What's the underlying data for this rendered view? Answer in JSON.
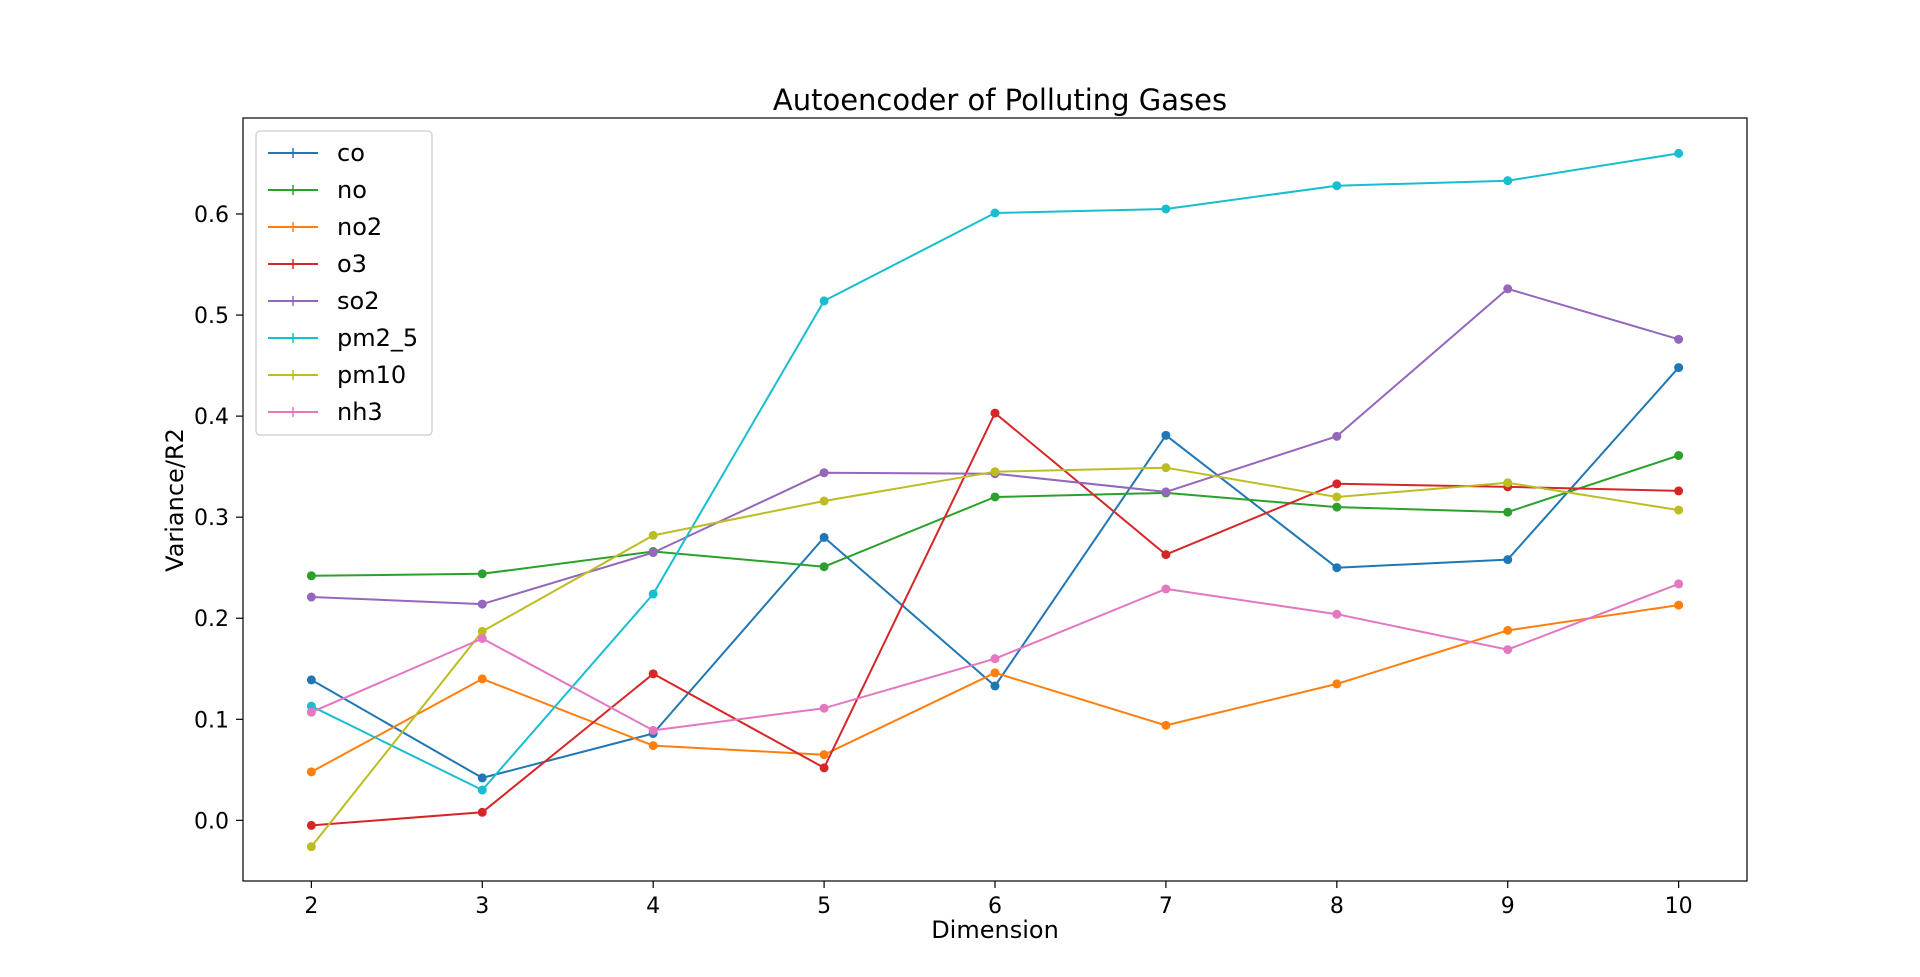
{
  "chart_data": {
    "type": "line",
    "title": "Autoencoder of Polluting Gases",
    "xlabel": "Dimension",
    "ylabel": "Variance/R2",
    "x": [
      2,
      3,
      4,
      5,
      6,
      7,
      8,
      9,
      10
    ],
    "xlim": [
      1.6,
      10.4
    ],
    "ylim": [
      -0.06,
      0.695
    ],
    "xticks": [
      "2",
      "3",
      "4",
      "5",
      "6",
      "7",
      "8",
      "9",
      "10"
    ],
    "yticks": [
      0.0,
      0.1,
      0.2,
      0.3,
      0.4,
      0.5,
      0.6
    ],
    "ytick_labels": [
      "0.0",
      "0.1",
      "0.2",
      "0.3",
      "0.4",
      "0.5",
      "0.6"
    ],
    "grid": false,
    "legend_position": "upper-left",
    "series": [
      {
        "name": "co",
        "color": "#1f77b4",
        "values": [
          0.139,
          0.042,
          0.086,
          0.28,
          0.133,
          0.381,
          0.25,
          0.258,
          0.448
        ]
      },
      {
        "name": "no",
        "color": "#2ca02c",
        "values": [
          0.242,
          0.244,
          0.266,
          0.251,
          0.32,
          0.324,
          0.31,
          0.305,
          0.361
        ]
      },
      {
        "name": "no2",
        "color": "#ff7f0e",
        "values": [
          0.048,
          0.14,
          0.074,
          0.065,
          0.146,
          0.094,
          0.135,
          0.188,
          0.213
        ]
      },
      {
        "name": "o3",
        "color": "#d62728",
        "values": [
          -0.005,
          0.008,
          0.145,
          0.052,
          0.403,
          0.263,
          0.333,
          0.33,
          0.326
        ]
      },
      {
        "name": "so2",
        "color": "#9467bd",
        "values": [
          0.221,
          0.214,
          0.265,
          0.344,
          0.343,
          0.325,
          0.38,
          0.526,
          0.476
        ]
      },
      {
        "name": "pm2_5",
        "color": "#17becf",
        "values": [
          0.113,
          0.03,
          0.224,
          0.514,
          0.601,
          0.605,
          0.628,
          0.633,
          0.66
        ]
      },
      {
        "name": "pm10",
        "color": "#bcbd22",
        "values": [
          -0.026,
          0.187,
          0.282,
          0.316,
          0.345,
          0.349,
          0.32,
          0.334,
          0.307
        ]
      },
      {
        "name": "nh3",
        "color": "#e377c2",
        "values": [
          0.107,
          0.18,
          0.089,
          0.111,
          0.16,
          0.229,
          0.204,
          0.169,
          0.234
        ]
      }
    ]
  }
}
